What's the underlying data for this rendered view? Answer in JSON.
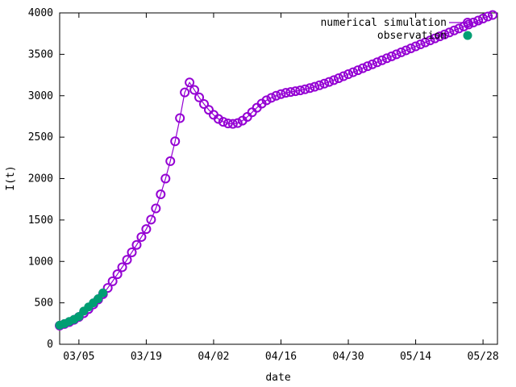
{
  "chart_data": {
    "type": "line",
    "title": "",
    "xlabel": "date",
    "ylabel": "I(t)",
    "x_unit": "date",
    "xlim": [
      "2020-03-01",
      "2020-05-31"
    ],
    "ylim": [
      0,
      4000
    ],
    "x_ticks": [
      {
        "date": "2020-03-05",
        "label": "03/05"
      },
      {
        "date": "2020-03-19",
        "label": "03/19"
      },
      {
        "date": "2020-04-02",
        "label": "04/02"
      },
      {
        "date": "2020-04-16",
        "label": "04/16"
      },
      {
        "date": "2020-04-30",
        "label": "04/30"
      },
      {
        "date": "2020-05-14",
        "label": "05/14"
      },
      {
        "date": "2020-05-28",
        "label": "05/28"
      }
    ],
    "y_ticks": [
      0,
      500,
      1000,
      1500,
      2000,
      2500,
      3000,
      3500,
      4000
    ],
    "grid": false,
    "legend_position": "top-right",
    "series": [
      {
        "name": "numerical simulation",
        "color": "#9400d3",
        "marker": "open-circle",
        "line": true,
        "points": [
          [
            "2020-03-01",
            225
          ],
          [
            "2020-03-02",
            245
          ],
          [
            "2020-03-03",
            268
          ],
          [
            "2020-03-04",
            295
          ],
          [
            "2020-03-05",
            330
          ],
          [
            "2020-03-06",
            375
          ],
          [
            "2020-03-07",
            425
          ],
          [
            "2020-03-08",
            480
          ],
          [
            "2020-03-09",
            540
          ],
          [
            "2020-03-10",
            605
          ],
          [
            "2020-03-11",
            680
          ],
          [
            "2020-03-12",
            760
          ],
          [
            "2020-03-13",
            845
          ],
          [
            "2020-03-14",
            930
          ],
          [
            "2020-03-15",
            1020
          ],
          [
            "2020-03-16",
            1110
          ],
          [
            "2020-03-17",
            1200
          ],
          [
            "2020-03-18",
            1295
          ],
          [
            "2020-03-19",
            1390
          ],
          [
            "2020-03-20",
            1505
          ],
          [
            "2020-03-21",
            1640
          ],
          [
            "2020-03-22",
            1810
          ],
          [
            "2020-03-23",
            2000
          ],
          [
            "2020-03-24",
            2210
          ],
          [
            "2020-03-25",
            2450
          ],
          [
            "2020-03-26",
            2730
          ],
          [
            "2020-03-27",
            3040
          ],
          [
            "2020-03-28",
            3160
          ],
          [
            "2020-03-29",
            3070
          ],
          [
            "2020-03-30",
            2980
          ],
          [
            "2020-03-31",
            2900
          ],
          [
            "2020-04-01",
            2830
          ],
          [
            "2020-04-02",
            2770
          ],
          [
            "2020-04-03",
            2720
          ],
          [
            "2020-04-04",
            2685
          ],
          [
            "2020-04-05",
            2665
          ],
          [
            "2020-04-06",
            2660
          ],
          [
            "2020-04-07",
            2670
          ],
          [
            "2020-04-08",
            2700
          ],
          [
            "2020-04-09",
            2745
          ],
          [
            "2020-04-10",
            2800
          ],
          [
            "2020-04-11",
            2855
          ],
          [
            "2020-04-12",
            2905
          ],
          [
            "2020-04-13",
            2945
          ],
          [
            "2020-04-14",
            2975
          ],
          [
            "2020-04-15",
            3000
          ],
          [
            "2020-04-16",
            3020
          ],
          [
            "2020-04-17",
            3035
          ],
          [
            "2020-04-18",
            3045
          ],
          [
            "2020-04-19",
            3055
          ],
          [
            "2020-04-20",
            3065
          ],
          [
            "2020-04-21",
            3078
          ],
          [
            "2020-04-22",
            3092
          ],
          [
            "2020-04-23",
            3108
          ],
          [
            "2020-04-24",
            3126
          ],
          [
            "2020-04-25",
            3146
          ],
          [
            "2020-04-26",
            3167
          ],
          [
            "2020-04-27",
            3189
          ],
          [
            "2020-04-28",
            3212
          ],
          [
            "2020-04-29",
            3236
          ],
          [
            "2020-04-30",
            3260
          ],
          [
            "2020-05-01",
            3284
          ],
          [
            "2020-05-02",
            3308
          ],
          [
            "2020-05-03",
            3332
          ],
          [
            "2020-05-04",
            3356
          ],
          [
            "2020-05-05",
            3380
          ],
          [
            "2020-05-06",
            3404
          ],
          [
            "2020-05-07",
            3428
          ],
          [
            "2020-05-08",
            3452
          ],
          [
            "2020-05-09",
            3476
          ],
          [
            "2020-05-10",
            3500
          ],
          [
            "2020-05-11",
            3524
          ],
          [
            "2020-05-12",
            3548
          ],
          [
            "2020-05-13",
            3572
          ],
          [
            "2020-05-14",
            3596
          ],
          [
            "2020-05-15",
            3620
          ],
          [
            "2020-05-16",
            3644
          ],
          [
            "2020-05-17",
            3668
          ],
          [
            "2020-05-18",
            3692
          ],
          [
            "2020-05-19",
            3716
          ],
          [
            "2020-05-20",
            3740
          ],
          [
            "2020-05-21",
            3764
          ],
          [
            "2020-05-22",
            3788
          ],
          [
            "2020-05-23",
            3812
          ],
          [
            "2020-05-24",
            3836
          ],
          [
            "2020-05-25",
            3860
          ],
          [
            "2020-05-26",
            3884
          ],
          [
            "2020-05-27",
            3908
          ],
          [
            "2020-05-28",
            3932
          ],
          [
            "2020-05-29",
            3956
          ],
          [
            "2020-05-30",
            3975
          ]
        ]
      },
      {
        "name": "observation",
        "color": "#009e73",
        "marker": "filled-circle",
        "line": false,
        "points": [
          [
            "2020-03-01",
            230
          ],
          [
            "2020-03-02",
            250
          ],
          [
            "2020-03-03",
            275
          ],
          [
            "2020-03-04",
            300
          ],
          [
            "2020-03-05",
            335
          ],
          [
            "2020-03-06",
            400
          ],
          [
            "2020-03-07",
            450
          ],
          [
            "2020-03-08",
            500
          ],
          [
            "2020-03-09",
            550
          ],
          [
            "2020-03-10",
            620
          ]
        ]
      }
    ]
  }
}
